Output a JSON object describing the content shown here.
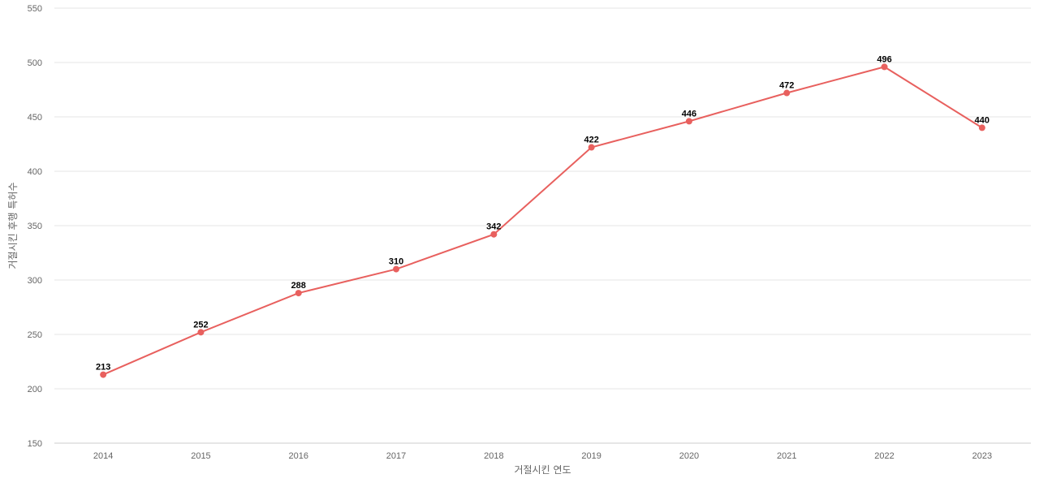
{
  "chart_data": {
    "type": "line",
    "title": "",
    "xlabel": "거절시킨 연도",
    "ylabel": "거절시킨 후행 특허수",
    "x": [
      "2014",
      "2015",
      "2016",
      "2017",
      "2018",
      "2019",
      "2020",
      "2021",
      "2022",
      "2023"
    ],
    "series": [
      {
        "values": [
          213,
          252,
          288,
          310,
          342,
          422,
          446,
          472,
          496,
          440
        ],
        "color": "#e8605e"
      }
    ],
    "ylim": [
      150,
      550
    ],
    "yticks": [
      150,
      200,
      250,
      300,
      350,
      400,
      450,
      500,
      550
    ],
    "grid": true,
    "legend": "none",
    "data_labels": true
  }
}
